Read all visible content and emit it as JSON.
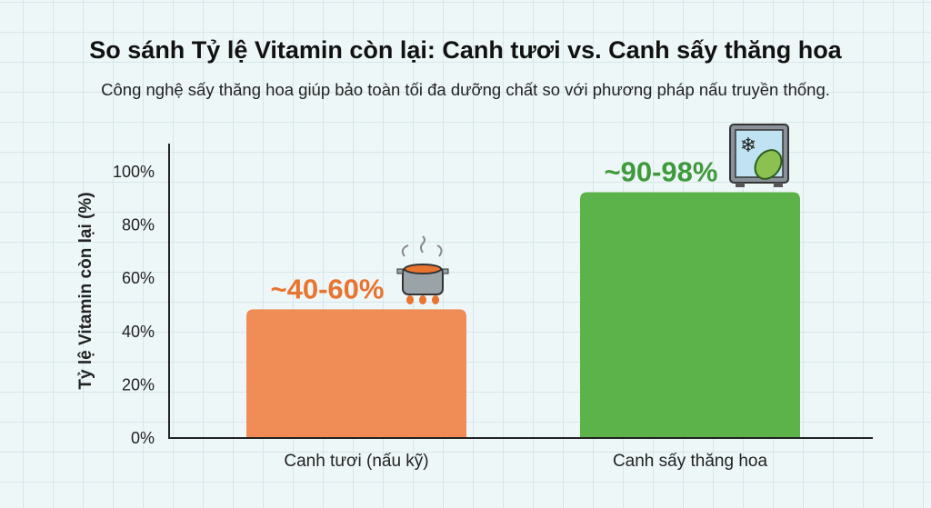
{
  "title": "So sánh Tỷ lệ Vitamin còn lại: Canh tươi vs. Canh sấy thăng hoa",
  "subtitle": "Công nghệ sấy thăng hoa giúp bảo toàn tối đa dưỡng chất so với phương pháp nấu truyền thống.",
  "chart_data": {
    "type": "bar",
    "title": "So sánh Tỷ lệ Vitamin còn lại: Canh tươi vs. Canh sấy thăng hoa",
    "xlabel": "",
    "ylabel": "Tỷ lệ Vitamin còn lại (%)",
    "ylim": [
      0,
      100
    ],
    "yticks": [
      "0%",
      "20%",
      "40%",
      "60%",
      "80%",
      "100%"
    ],
    "categories": [
      "Canh tươi (nấu kỹ)",
      "Canh sấy thăng hoa"
    ],
    "values": [
      48,
      92
    ],
    "data_labels": [
      "~40-60%",
      "~90-98%"
    ],
    "colors": [
      "#f08c55",
      "#5cb34a"
    ],
    "label_colors": [
      "#e8742f",
      "#3f9a3c"
    ],
    "icons": [
      "boiling-pot-icon",
      "freeze-dryer-cabbage-icon"
    ],
    "grid": true
  }
}
